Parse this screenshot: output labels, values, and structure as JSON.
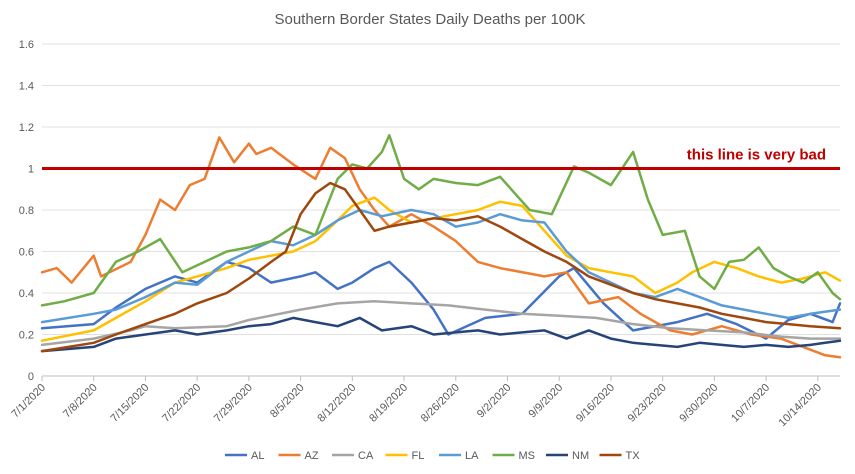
{
  "chart_data": {
    "type": "line",
    "title": "Southern Border States Daily Deaths per 100K",
    "xlabel": "",
    "ylabel": "",
    "ylim": [
      0,
      1.6
    ],
    "yticks": [
      "0",
      "0.2",
      "0.4",
      "0.6",
      "0.8",
      "1",
      "1.2",
      "1.4",
      "1.6"
    ],
    "xticks": [
      "7/1/2020",
      "7/8/2020",
      "7/15/2020",
      "7/22/2020",
      "7/29/2020",
      "8/5/2020",
      "8/12/2020",
      "8/19/2020",
      "8/26/2020",
      "9/2/2020",
      "9/9/2020",
      "9/16/2020",
      "9/23/2020",
      "9/30/2020",
      "10/7/2020",
      "10/14/2020"
    ],
    "x_start": "7/1/2020",
    "x_end": "10/16/2020",
    "grid": "horizontal",
    "legend_position": "bottom",
    "annotation": {
      "text": "this line is very bad",
      "y": 1.0,
      "color": "#c00000"
    },
    "series": [
      {
        "name": "AL",
        "color": "#4472c4",
        "values": [
          [
            0,
            0.23
          ],
          [
            7,
            0.25
          ],
          [
            10,
            0.33
          ],
          [
            14,
            0.42
          ],
          [
            18,
            0.48
          ],
          [
            21,
            0.45
          ],
          [
            25,
            0.55
          ],
          [
            28,
            0.52
          ],
          [
            31,
            0.45
          ],
          [
            35,
            0.48
          ],
          [
            37,
            0.5
          ],
          [
            40,
            0.42
          ],
          [
            42,
            0.45
          ],
          [
            45,
            0.52
          ],
          [
            47,
            0.55
          ],
          [
            50,
            0.45
          ],
          [
            53,
            0.32
          ],
          [
            55,
            0.2
          ],
          [
            60,
            0.28
          ],
          [
            65,
            0.3
          ],
          [
            70,
            0.48
          ],
          [
            72,
            0.52
          ],
          [
            76,
            0.35
          ],
          [
            80,
            0.22
          ],
          [
            86,
            0.26
          ],
          [
            90,
            0.3
          ],
          [
            94,
            0.25
          ],
          [
            98,
            0.18
          ],
          [
            101,
            0.27
          ],
          [
            104,
            0.3
          ],
          [
            107,
            0.26
          ],
          [
            108,
            0.35
          ]
        ]
      },
      {
        "name": "AZ",
        "color": "#ed7d31",
        "values": [
          [
            0,
            0.5
          ],
          [
            2,
            0.52
          ],
          [
            4,
            0.45
          ],
          [
            7,
            0.58
          ],
          [
            8,
            0.48
          ],
          [
            12,
            0.55
          ],
          [
            14,
            0.68
          ],
          [
            16,
            0.85
          ],
          [
            18,
            0.8
          ],
          [
            20,
            0.92
          ],
          [
            22,
            0.95
          ],
          [
            24,
            1.15
          ],
          [
            26,
            1.03
          ],
          [
            28,
            1.12
          ],
          [
            29,
            1.07
          ],
          [
            31,
            1.1
          ],
          [
            34,
            1.02
          ],
          [
            37,
            0.95
          ],
          [
            39,
            1.1
          ],
          [
            41,
            1.05
          ],
          [
            43,
            0.9
          ],
          [
            45,
            0.8
          ],
          [
            47,
            0.72
          ],
          [
            50,
            0.78
          ],
          [
            53,
            0.72
          ],
          [
            56,
            0.65
          ],
          [
            59,
            0.55
          ],
          [
            62,
            0.52
          ],
          [
            68,
            0.48
          ],
          [
            71,
            0.5
          ],
          [
            74,
            0.35
          ],
          [
            78,
            0.38
          ],
          [
            81,
            0.3
          ],
          [
            85,
            0.22
          ],
          [
            88,
            0.2
          ],
          [
            92,
            0.24
          ],
          [
            96,
            0.2
          ],
          [
            100,
            0.18
          ],
          [
            103,
            0.14
          ],
          [
            106,
            0.1
          ],
          [
            108,
            0.09
          ]
        ]
      },
      {
        "name": "CA",
        "color": "#a5a5a5",
        "values": [
          [
            0,
            0.15
          ],
          [
            7,
            0.18
          ],
          [
            12,
            0.22
          ],
          [
            14,
            0.24
          ],
          [
            18,
            0.23
          ],
          [
            25,
            0.24
          ],
          [
            28,
            0.27
          ],
          [
            35,
            0.32
          ],
          [
            40,
            0.35
          ],
          [
            45,
            0.36
          ],
          [
            50,
            0.35
          ],
          [
            55,
            0.34
          ],
          [
            60,
            0.32
          ],
          [
            65,
            0.3
          ],
          [
            70,
            0.29
          ],
          [
            75,
            0.28
          ],
          [
            80,
            0.25
          ],
          [
            85,
            0.23
          ],
          [
            90,
            0.22
          ],
          [
            95,
            0.21
          ],
          [
            100,
            0.19
          ],
          [
            104,
            0.18
          ],
          [
            108,
            0.18
          ]
        ]
      },
      {
        "name": "FL",
        "color": "#ffc000",
        "values": [
          [
            0,
            0.17
          ],
          [
            7,
            0.22
          ],
          [
            10,
            0.28
          ],
          [
            14,
            0.36
          ],
          [
            18,
            0.45
          ],
          [
            21,
            0.48
          ],
          [
            25,
            0.52
          ],
          [
            28,
            0.56
          ],
          [
            31,
            0.58
          ],
          [
            34,
            0.6
          ],
          [
            37,
            0.65
          ],
          [
            40,
            0.75
          ],
          [
            42,
            0.82
          ],
          [
            45,
            0.86
          ],
          [
            47,
            0.8
          ],
          [
            50,
            0.74
          ],
          [
            53,
            0.76
          ],
          [
            56,
            0.78
          ],
          [
            59,
            0.8
          ],
          [
            62,
            0.84
          ],
          [
            65,
            0.82
          ],
          [
            68,
            0.7
          ],
          [
            71,
            0.58
          ],
          [
            74,
            0.52
          ],
          [
            77,
            0.5
          ],
          [
            80,
            0.48
          ],
          [
            83,
            0.4
          ],
          [
            86,
            0.45
          ],
          [
            88,
            0.5
          ],
          [
            91,
            0.55
          ],
          [
            94,
            0.52
          ],
          [
            97,
            0.48
          ],
          [
            100,
            0.45
          ],
          [
            103,
            0.47
          ],
          [
            106,
            0.5
          ],
          [
            108,
            0.46
          ]
        ]
      },
      {
        "name": "LA",
        "color": "#5b9bd5",
        "values": [
          [
            0,
            0.26
          ],
          [
            7,
            0.3
          ],
          [
            10,
            0.32
          ],
          [
            14,
            0.38
          ],
          [
            18,
            0.45
          ],
          [
            21,
            0.44
          ],
          [
            25,
            0.55
          ],
          [
            28,
            0.6
          ],
          [
            31,
            0.65
          ],
          [
            34,
            0.63
          ],
          [
            37,
            0.68
          ],
          [
            40,
            0.75
          ],
          [
            43,
            0.8
          ],
          [
            46,
            0.77
          ],
          [
            50,
            0.8
          ],
          [
            53,
            0.78
          ],
          [
            56,
            0.72
          ],
          [
            59,
            0.74
          ],
          [
            62,
            0.78
          ],
          [
            65,
            0.75
          ],
          [
            68,
            0.74
          ],
          [
            71,
            0.6
          ],
          [
            74,
            0.5
          ],
          [
            77,
            0.45
          ],
          [
            80,
            0.4
          ],
          [
            83,
            0.38
          ],
          [
            86,
            0.42
          ],
          [
            89,
            0.38
          ],
          [
            92,
            0.34
          ],
          [
            95,
            0.32
          ],
          [
            98,
            0.3
          ],
          [
            101,
            0.28
          ],
          [
            104,
            0.3
          ],
          [
            108,
            0.32
          ]
        ]
      },
      {
        "name": "MS",
        "color": "#70ad47",
        "values": [
          [
            0,
            0.34
          ],
          [
            3,
            0.36
          ],
          [
            7,
            0.4
          ],
          [
            10,
            0.55
          ],
          [
            13,
            0.6
          ],
          [
            16,
            0.66
          ],
          [
            19,
            0.5
          ],
          [
            22,
            0.55
          ],
          [
            25,
            0.6
          ],
          [
            28,
            0.62
          ],
          [
            31,
            0.65
          ],
          [
            34,
            0.72
          ],
          [
            37,
            0.68
          ],
          [
            40,
            0.95
          ],
          [
            42,
            1.02
          ],
          [
            44,
            1.0
          ],
          [
            46,
            1.08
          ],
          [
            47,
            1.16
          ],
          [
            49,
            0.95
          ],
          [
            51,
            0.9
          ],
          [
            53,
            0.95
          ],
          [
            56,
            0.93
          ],
          [
            59,
            0.92
          ],
          [
            62,
            0.96
          ],
          [
            64,
            0.88
          ],
          [
            66,
            0.8
          ],
          [
            69,
            0.78
          ],
          [
            72,
            1.01
          ],
          [
            74,
            0.98
          ],
          [
            77,
            0.92
          ],
          [
            80,
            1.08
          ],
          [
            82,
            0.85
          ],
          [
            84,
            0.68
          ],
          [
            87,
            0.7
          ],
          [
            89,
            0.48
          ],
          [
            91,
            0.42
          ],
          [
            93,
            0.55
          ],
          [
            95,
            0.56
          ],
          [
            97,
            0.62
          ],
          [
            99,
            0.52
          ],
          [
            101,
            0.48
          ],
          [
            103,
            0.45
          ],
          [
            105,
            0.5
          ],
          [
            107,
            0.4
          ],
          [
            108,
            0.37
          ]
        ]
      },
      {
        "name": "NM",
        "color": "#264478",
        "values": [
          [
            0,
            0.12
          ],
          [
            7,
            0.14
          ],
          [
            10,
            0.18
          ],
          [
            14,
            0.2
          ],
          [
            18,
            0.22
          ],
          [
            21,
            0.2
          ],
          [
            25,
            0.22
          ],
          [
            28,
            0.24
          ],
          [
            31,
            0.25
          ],
          [
            34,
            0.28
          ],
          [
            37,
            0.26
          ],
          [
            40,
            0.24
          ],
          [
            43,
            0.28
          ],
          [
            46,
            0.22
          ],
          [
            50,
            0.24
          ],
          [
            53,
            0.2
          ],
          [
            56,
            0.21
          ],
          [
            59,
            0.22
          ],
          [
            62,
            0.2
          ],
          [
            65,
            0.21
          ],
          [
            68,
            0.22
          ],
          [
            71,
            0.18
          ],
          [
            74,
            0.22
          ],
          [
            77,
            0.18
          ],
          [
            80,
            0.16
          ],
          [
            83,
            0.15
          ],
          [
            86,
            0.14
          ],
          [
            89,
            0.16
          ],
          [
            92,
            0.15
          ],
          [
            95,
            0.14
          ],
          [
            98,
            0.15
          ],
          [
            101,
            0.14
          ],
          [
            104,
            0.15
          ],
          [
            106,
            0.16
          ],
          [
            108,
            0.17
          ]
        ]
      },
      {
        "name": "TX",
        "color": "#9e480e",
        "values": [
          [
            0,
            0.12
          ],
          [
            7,
            0.16
          ],
          [
            10,
            0.2
          ],
          [
            14,
            0.25
          ],
          [
            18,
            0.3
          ],
          [
            21,
            0.35
          ],
          [
            25,
            0.4
          ],
          [
            28,
            0.47
          ],
          [
            31,
            0.55
          ],
          [
            33,
            0.6
          ],
          [
            35,
            0.78
          ],
          [
            37,
            0.88
          ],
          [
            39,
            0.93
          ],
          [
            41,
            0.9
          ],
          [
            43,
            0.8
          ],
          [
            45,
            0.7
          ],
          [
            47,
            0.72
          ],
          [
            50,
            0.74
          ],
          [
            53,
            0.76
          ],
          [
            56,
            0.75
          ],
          [
            59,
            0.77
          ],
          [
            62,
            0.72
          ],
          [
            65,
            0.66
          ],
          [
            68,
            0.6
          ],
          [
            71,
            0.55
          ],
          [
            74,
            0.48
          ],
          [
            77,
            0.44
          ],
          [
            80,
            0.4
          ],
          [
            83,
            0.37
          ],
          [
            86,
            0.35
          ],
          [
            89,
            0.33
          ],
          [
            92,
            0.3
          ],
          [
            95,
            0.28
          ],
          [
            98,
            0.26
          ],
          [
            101,
            0.25
          ],
          [
            104,
            0.24
          ],
          [
            108,
            0.23
          ]
        ]
      }
    ]
  }
}
